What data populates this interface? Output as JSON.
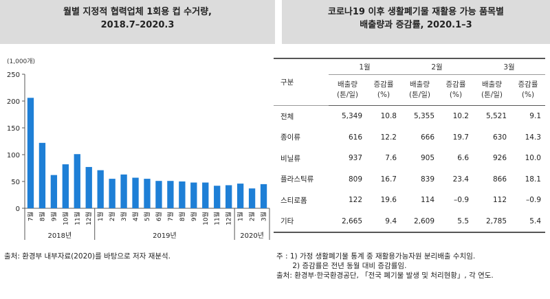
{
  "left_title": {
    "line1": "월별 지정적 협력업체 1회용 컵 수거량,",
    "line2": "2018.7–2020.3"
  },
  "right_title": {
    "line1": "코로나19 이후 생활폐기물 재활용 가능 품목별",
    "line2": "배출량과 증감률, 2020.1–3"
  },
  "chart_data": {
    "type": "bar",
    "unit_label": "(1,000개)",
    "ylim": [
      0,
      250
    ],
    "yticks": [
      0,
      50,
      100,
      150,
      200,
      250
    ],
    "categories": [
      "7월",
      "8월",
      "9월",
      "10월",
      "11월",
      "12월",
      "1월",
      "2월",
      "3월",
      "4월",
      "5월",
      "6월",
      "7월",
      "8월",
      "9월",
      "10월",
      "11월",
      "12월",
      "1월",
      "2월",
      "3월"
    ],
    "values": [
      206,
      122,
      62,
      82,
      101,
      77,
      71,
      55,
      63,
      57,
      55,
      51,
      51,
      50,
      48,
      48,
      42,
      43,
      46,
      37,
      45
    ],
    "year_groups": [
      {
        "label": "2018년",
        "start": 0,
        "end": 5
      },
      {
        "label": "2019년",
        "start": 6,
        "end": 17
      },
      {
        "label": "2020년",
        "start": 18,
        "end": 20
      }
    ],
    "bar_color": "#1e7fd6"
  },
  "left_source": "출처: 환경부 내부자료(2020)를 바탕으로 저자 재분석.",
  "table": {
    "corner": "구분",
    "months": [
      "1월",
      "2월",
      "3월"
    ],
    "sub_headers": [
      {
        "line1": "배출량",
        "line2": "(톤/일)"
      },
      {
        "line1": "증감률",
        "line2": "(%)"
      }
    ],
    "rows": [
      {
        "label": "전체",
        "cells": [
          "5,349",
          "10.8",
          "5,355",
          "10.2",
          "5,521",
          "9.1"
        ]
      },
      {
        "label": "종이류",
        "cells": [
          "616",
          "12.2",
          "666",
          "19.7",
          "630",
          "14.3"
        ]
      },
      {
        "label": "비닐류",
        "cells": [
          "937",
          "7.6",
          "905",
          "6.6",
          "926",
          "10.0"
        ]
      },
      {
        "label": "플라스틱류",
        "cells": [
          "809",
          "16.7",
          "839",
          "23.4",
          "866",
          "18.1"
        ]
      },
      {
        "label": "스티로폼",
        "cells": [
          "122",
          "19.6",
          "114",
          "–0.9",
          "112",
          "–0.9"
        ]
      },
      {
        "label": "기타",
        "cells": [
          "2,665",
          "9.4",
          "2,609",
          "5.5",
          "2,785",
          "5.4"
        ]
      }
    ]
  },
  "notes": [
    "주 : 1) 가정 생활폐기물 통계 중 재활용가능자원 분리배출 수치임.",
    "       2) 증감률은 전년 동월 대비 증감률임.",
    "출처: 환경부·한국환경공단, 「전국 폐기물 발생 및 처리현황」, 각 연도."
  ]
}
